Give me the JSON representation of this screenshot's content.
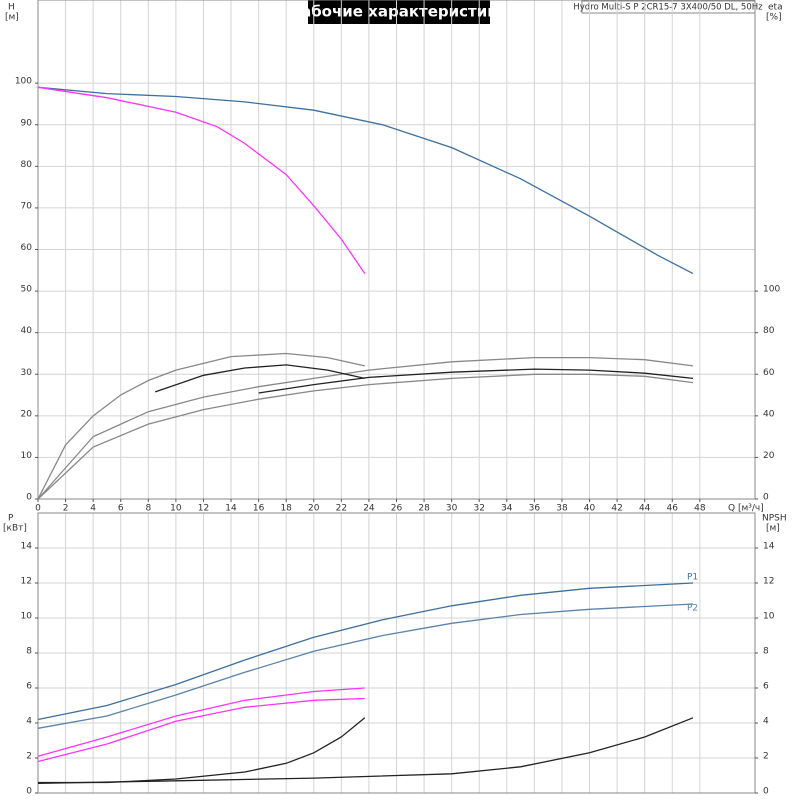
{
  "chart_data": [
    {
      "type": "line",
      "title": "Рабочие характеристики",
      "subtitle": "Hydro Multi-S P 2CR15-7 3X400/50 DL, 50Hz",
      "ylabel": "H",
      "yunit": "[м]",
      "y2label": "eta",
      "y2unit": "[%]",
      "xlabel": "Q [м³/ч]",
      "xlim": [
        0,
        52
      ],
      "xticks": [
        0,
        2,
        4,
        6,
        8,
        10,
        12,
        14,
        16,
        18,
        20,
        22,
        24,
        26,
        28,
        30,
        32,
        34,
        36,
        38,
        40,
        42,
        44,
        46,
        48
      ],
      "ylim": [
        0,
        120
      ],
      "yticks": [
        0,
        10,
        20,
        30,
        40,
        50,
        60,
        70,
        80,
        90,
        100
      ],
      "y2lim": [
        0,
        240
      ],
      "y2ticks": [
        0,
        20,
        40,
        60,
        80,
        100
      ],
      "grid": true,
      "series": [
        {
          "color": "#3d6f9e",
          "x": [
            0,
            5,
            10,
            15,
            20,
            25,
            30,
            35,
            40,
            45,
            47.5
          ],
          "values": [
            99,
            97.5,
            96.8,
            95.5,
            93.5,
            90,
            84.5,
            77,
            68,
            58.5,
            54.2
          ]
        },
        {
          "color": "#ff33ff",
          "x": [
            0,
            5,
            10,
            13,
            15,
            18,
            20,
            22,
            23.7
          ],
          "values": [
            99,
            96.5,
            93,
            89.5,
            85.5,
            78,
            70.5,
            62.5,
            54.2
          ]
        },
        {
          "color": "#888888",
          "axis": "y2",
          "x": [
            0,
            2,
            4,
            6,
            8,
            10,
            14,
            18,
            21,
            23.7
          ],
          "values": [
            0,
            26,
            40,
            50,
            57,
            62,
            68.5,
            70,
            68,
            64
          ]
        },
        {
          "color": "#888888",
          "axis": "y2",
          "x": [
            0,
            4,
            8,
            12,
            16,
            20,
            24,
            30,
            36,
            40,
            44,
            47.5
          ],
          "values": [
            0,
            30,
            42,
            49,
            54,
            58,
            62,
            66,
            68,
            68,
            67,
            64
          ]
        },
        {
          "color": "#888888",
          "axis": "y2",
          "x": [
            0,
            4,
            8,
            12,
            16,
            20,
            24,
            30,
            36,
            40,
            44,
            47.5
          ],
          "values": [
            0,
            25,
            36,
            43,
            48,
            52,
            55,
            58,
            60,
            60,
            59,
            56
          ]
        },
        {
          "color": "#222222",
          "axis": "y2",
          "x": [
            8.5,
            12,
            15,
            18,
            21,
            23.7
          ],
          "values": [
            51.5,
            59.5,
            63,
            64.5,
            62,
            58
          ]
        },
        {
          "color": "#222222",
          "axis": "y2",
          "x": [
            16,
            20,
            24,
            30,
            36,
            40,
            44,
            47.5
          ],
          "values": [
            51,
            55,
            58.5,
            61,
            62.5,
            62,
            60.5,
            58
          ]
        }
      ]
    },
    {
      "type": "line",
      "ylabel": "P",
      "yunit": "[кВт]",
      "y2label": "NPSH",
      "y2unit": "[м]",
      "ylim": [
        0,
        16
      ],
      "yticks": [
        0,
        2,
        4,
        6,
        8,
        10,
        12,
        14
      ],
      "y2lim": [
        0,
        16
      ],
      "y2ticks": [
        0,
        2,
        4,
        6,
        8,
        10,
        12,
        14
      ],
      "grid": true,
      "series": [
        {
          "name": "P1",
          "color": "#3d6f9e",
          "x": [
            0,
            5,
            10,
            15,
            20,
            25,
            30,
            35,
            40,
            47.5
          ],
          "values": [
            4.2,
            5,
            6.2,
            7.6,
            8.9,
            9.9,
            10.7,
            11.3,
            11.7,
            12
          ]
        },
        {
          "name": "P2",
          "color": "#5a82ad",
          "x": [
            0,
            5,
            10,
            15,
            20,
            25,
            30,
            35,
            40,
            47.5
          ],
          "values": [
            3.7,
            4.4,
            5.6,
            6.9,
            8.1,
            9,
            9.7,
            10.2,
            10.5,
            10.8
          ]
        },
        {
          "color": "#ff33ff",
          "x": [
            0,
            5,
            10,
            15,
            20,
            23.7
          ],
          "values": [
            2.1,
            3.2,
            4.4,
            5.3,
            5.8,
            6
          ]
        },
        {
          "color": "#ff33ff",
          "x": [
            0,
            5,
            10,
            15,
            20,
            23.7
          ],
          "values": [
            1.8,
            2.8,
            4.1,
            4.9,
            5.3,
            5.4
          ]
        },
        {
          "color": "#222222",
          "axis": "y2",
          "x": [
            0,
            5,
            10,
            15,
            18,
            20,
            22,
            23.7
          ],
          "values": [
            0.6,
            0.6,
            0.8,
            1.2,
            1.7,
            2.3,
            3.2,
            4.3
          ]
        },
        {
          "color": "#222222",
          "axis": "y2",
          "x": [
            0,
            10,
            20,
            30,
            35,
            40,
            44,
            47.5
          ],
          "values": [
            0.55,
            0.7,
            0.85,
            1.1,
            1.5,
            2.3,
            3.2,
            4.3
          ]
        }
      ]
    }
  ]
}
